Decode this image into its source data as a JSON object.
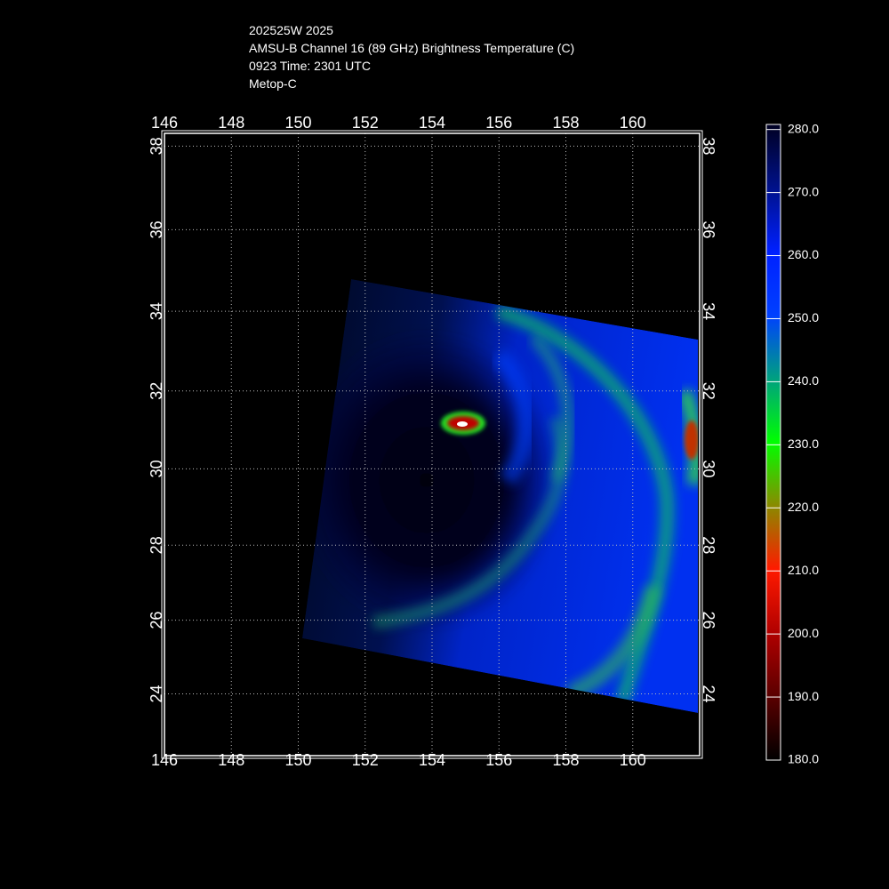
{
  "header": {
    "lines": [
      "202525W 2025",
      "AMSU-B Channel 16 (89 GHz) Brightness Temperature (C)",
      "0923 Time: 2301 UTC",
      "Metop-C"
    ]
  },
  "map": {
    "lonlim": [
      146,
      162
    ],
    "latlim": [
      22.3,
      38.3
    ],
    "lon_ticks": [
      146,
      148,
      150,
      152,
      154,
      156,
      158,
      160
    ],
    "lat_ticks": [
      24,
      26,
      28,
      30,
      32,
      34,
      36,
      38
    ]
  },
  "colorbar": {
    "lim": [
      180,
      280.8
    ],
    "ticks": [
      {
        "value": 180,
        "label": "180.0"
      },
      {
        "value": 190,
        "label": "190.0"
      },
      {
        "value": 200,
        "label": "200.0"
      },
      {
        "value": 210,
        "label": "210.0"
      },
      {
        "value": 220,
        "label": "220.0"
      },
      {
        "value": 230,
        "label": "230.0"
      },
      {
        "value": 240,
        "label": "240.0"
      },
      {
        "value": 250,
        "label": "250.0"
      },
      {
        "value": 260,
        "label": "260.0"
      },
      {
        "value": 270,
        "label": "270.0"
      },
      {
        "value": 280,
        "label": "280.0"
      }
    ]
  }
}
